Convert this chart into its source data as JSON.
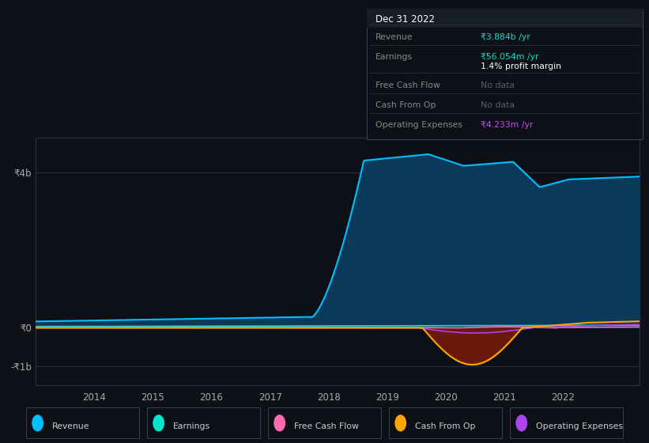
{
  "background_color": "#0d1117",
  "plot_bg_color": "#0d1117",
  "grid_color": "#2a3040",
  "info_box": {
    "date": "Dec 31 2022",
    "rows": [
      {
        "label": "Revenue",
        "value": "₹3.884b /yr",
        "value_color": "#00e5cc",
        "extra": null
      },
      {
        "label": "Earnings",
        "value": "₹56.054m /yr",
        "value_color": "#00e5cc",
        "extra": "1.4% profit margin"
      },
      {
        "label": "Free Cash Flow",
        "value": "No data",
        "value_color": "#555e6e",
        "extra": null
      },
      {
        "label": "Cash From Op",
        "value": "No data",
        "value_color": "#555e6e",
        "extra": null
      },
      {
        "label": "Operating Expenses",
        "value": "₹4.233m /yr",
        "value_color": "#cc44ff",
        "extra": null
      }
    ]
  },
  "y_labels": [
    "₹4b",
    "₹0",
    "-₹1b"
  ],
  "y_ticks": [
    4000000000,
    0,
    -1000000000
  ],
  "x_ticks": [
    2014,
    2015,
    2016,
    2017,
    2018,
    2019,
    2020,
    2021,
    2022
  ],
  "ylim": [
    -1500000000.0,
    4900000000.0
  ],
  "xlim": [
    2013.0,
    2023.3
  ],
  "colors": {
    "revenue": "#00bfff",
    "revenue_fill": "#003d5c",
    "earnings": "#00e5cc",
    "free_cash_flow": "#ff69b4",
    "cash_from_op": "#ffa500",
    "cash_from_op_fill": "#5c1a0a",
    "operating_expenses": "#aa44ee"
  },
  "legend": [
    {
      "label": "Revenue",
      "color": "#00bfff"
    },
    {
      "label": "Earnings",
      "color": "#00e5cc"
    },
    {
      "label": "Free Cash Flow",
      "color": "#ff69b4"
    },
    {
      "label": "Cash From Op",
      "color": "#ffa500"
    },
    {
      "label": "Operating Expenses",
      "color": "#aa44ee"
    }
  ]
}
